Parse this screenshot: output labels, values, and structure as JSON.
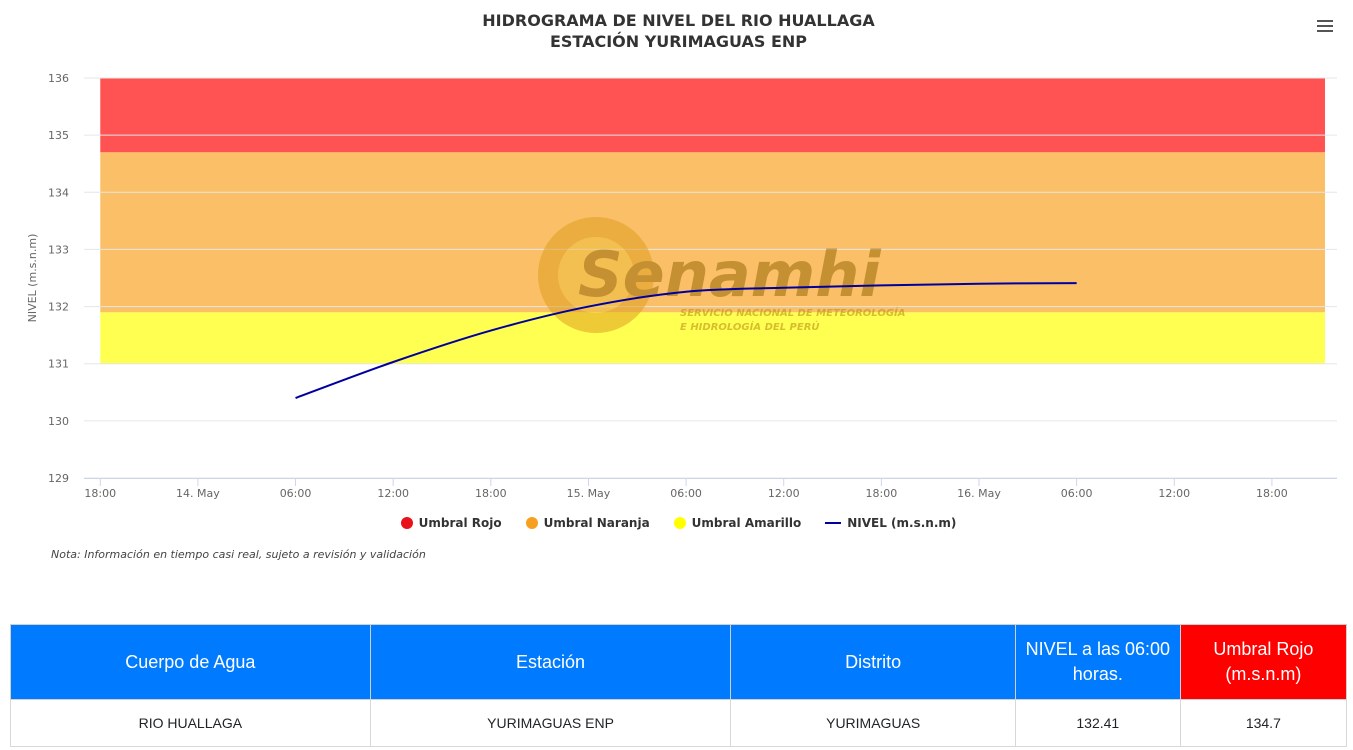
{
  "chart_data": {
    "type": "line",
    "title_line1": "HIDROGRAMA DE NIVEL DEL RIO HUALLAGA",
    "title_line2": "ESTACIÓN YURIMAGUAS ENP",
    "ylabel": "NIVEL (m.s.n.m)",
    "ylim": [
      129,
      136
    ],
    "yticks": [
      "129",
      "130",
      "131",
      "132",
      "133",
      "134",
      "135",
      "136"
    ],
    "xticks": [
      "18:00",
      "14. May",
      "06:00",
      "12:00",
      "18:00",
      "15. May",
      "06:00",
      "12:00",
      "18:00",
      "16. May",
      "06:00",
      "12:00",
      "18:00"
    ],
    "xtick_hours": [
      18,
      24,
      30,
      36,
      42,
      48,
      54,
      60,
      66,
      72,
      78,
      84,
      90
    ],
    "xlim_hours": [
      17,
      94
    ],
    "bands": [
      {
        "name": "Umbral Rojo",
        "from": 134.7,
        "to": 136,
        "color": "#ff0000"
      },
      {
        "name": "Umbral Naranja",
        "from": 131.9,
        "to": 134.7,
        "color": "#f7a01f"
      },
      {
        "name": "Umbral Amarillo",
        "from": 131.0,
        "to": 131.9,
        "color": "#ffff00"
      }
    ],
    "series": [
      {
        "name": "NIVEL (m.s.n.m)",
        "color": "#0000a0",
        "x_hours": [
          30,
          36,
          42,
          48,
          54,
          60,
          66,
          72,
          78
        ],
        "values": [
          130.4,
          131.03,
          131.58,
          132.0,
          132.26,
          132.33,
          132.37,
          132.4,
          132.41
        ]
      }
    ],
    "legend": [
      {
        "label": "Umbral Rojo",
        "color": "#e8121b",
        "shape": "dot"
      },
      {
        "label": "Umbral Naranja",
        "color": "#f7a01f",
        "shape": "dot"
      },
      {
        "label": "Umbral Amarillo",
        "color": "#ffff00",
        "shape": "dot"
      },
      {
        "label": "NIVEL (m.s.n.m)",
        "color": "#0000a0",
        "shape": "line"
      }
    ],
    "legend_position": "bottom-center",
    "grid": true
  },
  "watermark": {
    "brand": "Senamhi",
    "subtitle1": "SERVICIO NACIONAL DE METEOROLOGÍA",
    "subtitle2": "E HIDROLOGÍA DEL PERÚ"
  },
  "note": "Nota: Información en tiempo casi real, sujeto a revisión y validación",
  "table": {
    "headers": [
      "Cuerpo de Agua",
      "Estación",
      "Distrito",
      "NIVEL a las 06:00 horas.",
      "Umbral Rojo (m.s.n.m)"
    ],
    "row": [
      "RIO HUALLAGA",
      "YURIMAGUAS ENP",
      "YURIMAGUAS",
      "132.41",
      "134.7"
    ]
  }
}
